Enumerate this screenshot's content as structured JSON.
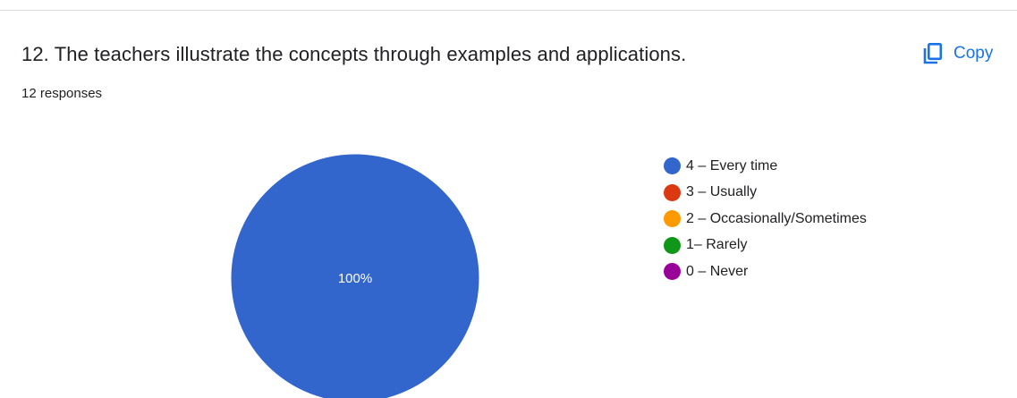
{
  "question": {
    "title": "12.  The teachers illustrate the concepts through examples and applications.",
    "responses_label": "12 responses"
  },
  "copy_button": {
    "label": "Copy",
    "icon": "copy-icon",
    "color": "#1a73e8"
  },
  "chart_data": {
    "type": "pie",
    "categories": [
      "4 – Every time",
      "3 – Usually",
      "2 – Occasionally/Sometimes",
      "1– Rarely",
      "0 – Never"
    ],
    "values": [
      100,
      0,
      0,
      0,
      0
    ],
    "unit": "%",
    "colors": [
      "#3366cc",
      "#dc3912",
      "#ff9900",
      "#109618",
      "#990099"
    ],
    "slice_labels": [
      "100%"
    ],
    "legend_position": "right"
  }
}
